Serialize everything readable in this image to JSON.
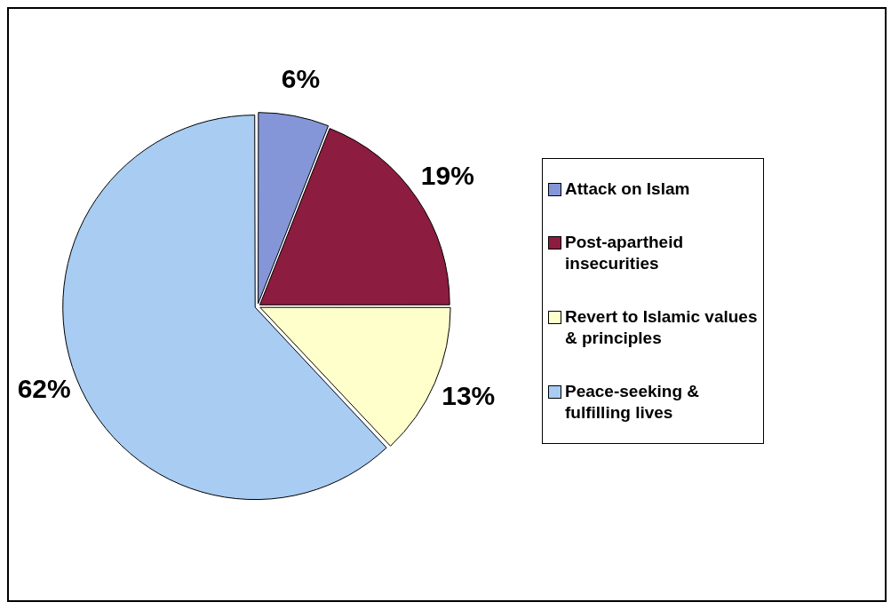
{
  "chart_data": {
    "type": "pie",
    "categories": [
      "Attack on Islam",
      "Post-apartheid insecurities",
      "Revert to Islamic values & principles",
      "Peace-seeking & fulfilling lives"
    ],
    "values": [
      6,
      19,
      13,
      62
    ],
    "colors": [
      "#8596d8",
      "#8c1c40",
      "#ffffcc",
      "#a8ccf2"
    ],
    "value_labels": [
      "6%",
      "19%",
      "13%",
      "62%"
    ],
    "legend": "right"
  }
}
